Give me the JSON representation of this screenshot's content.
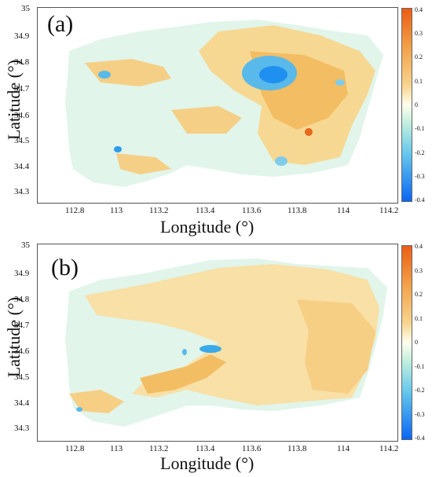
{
  "panels": [
    {
      "tag": "(a)",
      "xlabel": "Longitude (°)",
      "ylabel": "Latitude (°)",
      "xticks": [
        "112.8",
        "113",
        "113.2",
        "113.4",
        "113.6",
        "113.8",
        "114",
        "114.2"
      ],
      "yticks": [
        "35",
        "34.9",
        "34.8",
        "34.7",
        "34.6",
        "34.5",
        "34.4",
        "34.3"
      ],
      "colorbar_ticks": [
        "0.4",
        "0.3",
        "0.2",
        "0.1",
        "0",
        "-0.1",
        "-0.2",
        "-0.3",
        "-0.4"
      ]
    },
    {
      "tag": "(b)",
      "xlabel": "Longitude (°)",
      "ylabel": "Latitude (°)",
      "xticks": [
        "112.8",
        "113",
        "113.2",
        "113.4",
        "113.6",
        "113.8",
        "114",
        "114.2"
      ],
      "yticks": [
        "35",
        "34.9",
        "34.8",
        "34.7",
        "34.6",
        "34.5",
        "34.4",
        "34.3"
      ],
      "colorbar_ticks": [
        "0.4",
        "0.3",
        "0.2",
        "0.1",
        "0",
        "-0.1",
        "-0.2",
        "-0.3",
        "-0.4"
      ]
    }
  ],
  "colors": {
    "positive": "#f3b04f",
    "strong_positive": "#e7681a",
    "near_zero": "#dff5ea",
    "negative": "#3aa9ea",
    "strong_negative": "#0a66f3"
  }
}
